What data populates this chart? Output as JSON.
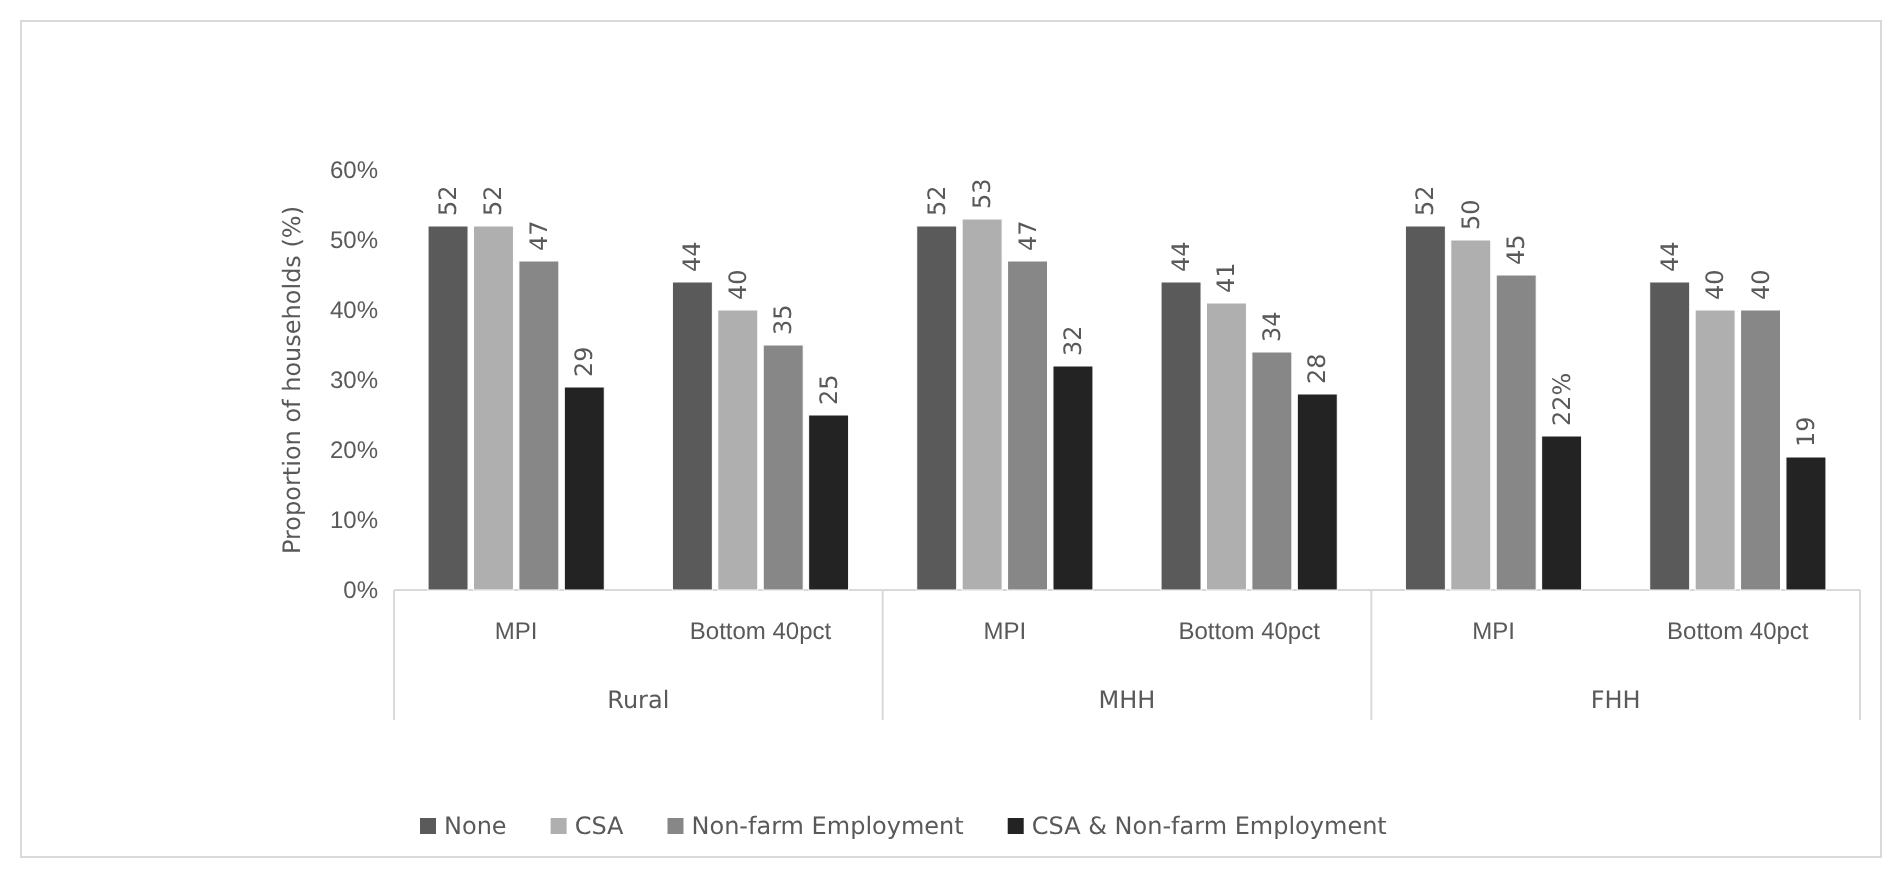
{
  "chart_data": {
    "type": "bar",
    "ylabel": "Proportion of households (%)",
    "categories": [
      "MPI",
      "Bottom 40pct",
      "MPI",
      "Bottom 40pct",
      "MPI",
      "Bottom 40pct"
    ],
    "annotations": [
      "Rural",
      "MHH",
      "FHH"
    ],
    "series": [
      {
        "name": "None",
        "color": "#5a5a5a",
        "values": [
          52,
          44,
          52,
          44,
          52,
          44
        ],
        "value_labels": [
          "52",
          "44",
          "52",
          "44",
          "52",
          "44"
        ]
      },
      {
        "name": "CSA",
        "color": "#afafaf",
        "values": [
          52,
          40,
          53,
          41,
          50,
          40
        ],
        "value_labels": [
          "52",
          "40",
          "53",
          "41",
          "50",
          "40"
        ]
      },
      {
        "name": "Non-farm Employment",
        "color": "#878787",
        "values": [
          47,
          35,
          47,
          34,
          45,
          40
        ],
        "value_labels": [
          "47",
          "35",
          "47",
          "34",
          "45",
          "40"
        ]
      },
      {
        "name": "CSA & Non-farm Employment",
        "color": "#232323",
        "values": [
          29,
          25,
          32,
          28,
          22,
          19
        ],
        "value_labels": [
          "29",
          "25",
          "32",
          "28",
          "22%",
          "19"
        ]
      }
    ],
    "ylim": [
      0,
      60
    ],
    "yticks": [
      {
        "value": 0,
        "label": "0%"
      },
      {
        "value": 10,
        "label": "10%"
      },
      {
        "value": 20,
        "label": "20%"
      },
      {
        "value": 30,
        "label": "30%"
      },
      {
        "value": 40,
        "label": "40%"
      },
      {
        "value": 50,
        "label": "50%"
      },
      {
        "value": 60,
        "label": "60%"
      }
    ],
    "grid": false,
    "legend": "bottom"
  }
}
